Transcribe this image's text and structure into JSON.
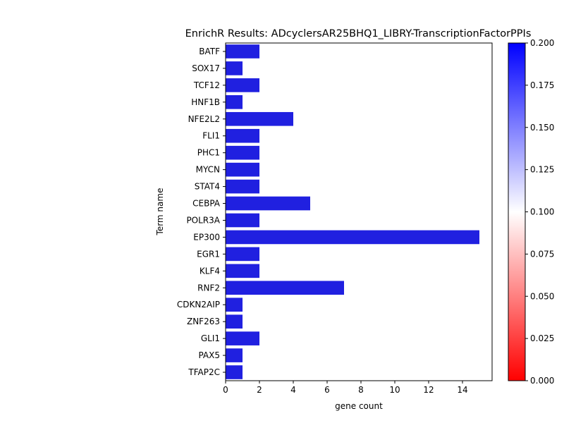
{
  "chart_data": {
    "type": "bar",
    "orientation": "horizontal",
    "title": "EnrichR Results: ADcyclersAR25BHQ1_LIBRY-TranscriptionFactorPPIs",
    "xlabel": "gene count",
    "ylabel": "Term name",
    "categories": [
      "BATF",
      "SOX17",
      "TCF12",
      "HNF1B",
      "NFE2L2",
      "FLI1",
      "PHC1",
      "MYCN",
      "STAT4",
      "CEBPA",
      "POLR3A",
      "EP300",
      "EGR1",
      "KLF4",
      "RNF2",
      "CDKN2AIP",
      "ZNF263",
      "GLI1",
      "PAX5",
      "TFAP2C"
    ],
    "values": [
      2,
      1,
      2,
      1,
      4,
      2,
      2,
      2,
      2,
      5,
      2,
      15,
      2,
      2,
      7,
      1,
      1,
      2,
      1,
      1
    ],
    "xlim": [
      0,
      15.75
    ],
    "xticks": [
      0,
      2,
      4,
      6,
      8,
      10,
      12,
      14
    ],
    "bar_color": "#2020e0",
    "grid": false,
    "colorbar": {
      "range": [
        0.0,
        0.2
      ],
      "ticks": [
        "0.000",
        "0.025",
        "0.050",
        "0.075",
        "0.100",
        "0.125",
        "0.150",
        "0.175",
        "0.200"
      ],
      "colors": [
        "#ff0000",
        "#ffffff",
        "#0000ff"
      ]
    }
  }
}
